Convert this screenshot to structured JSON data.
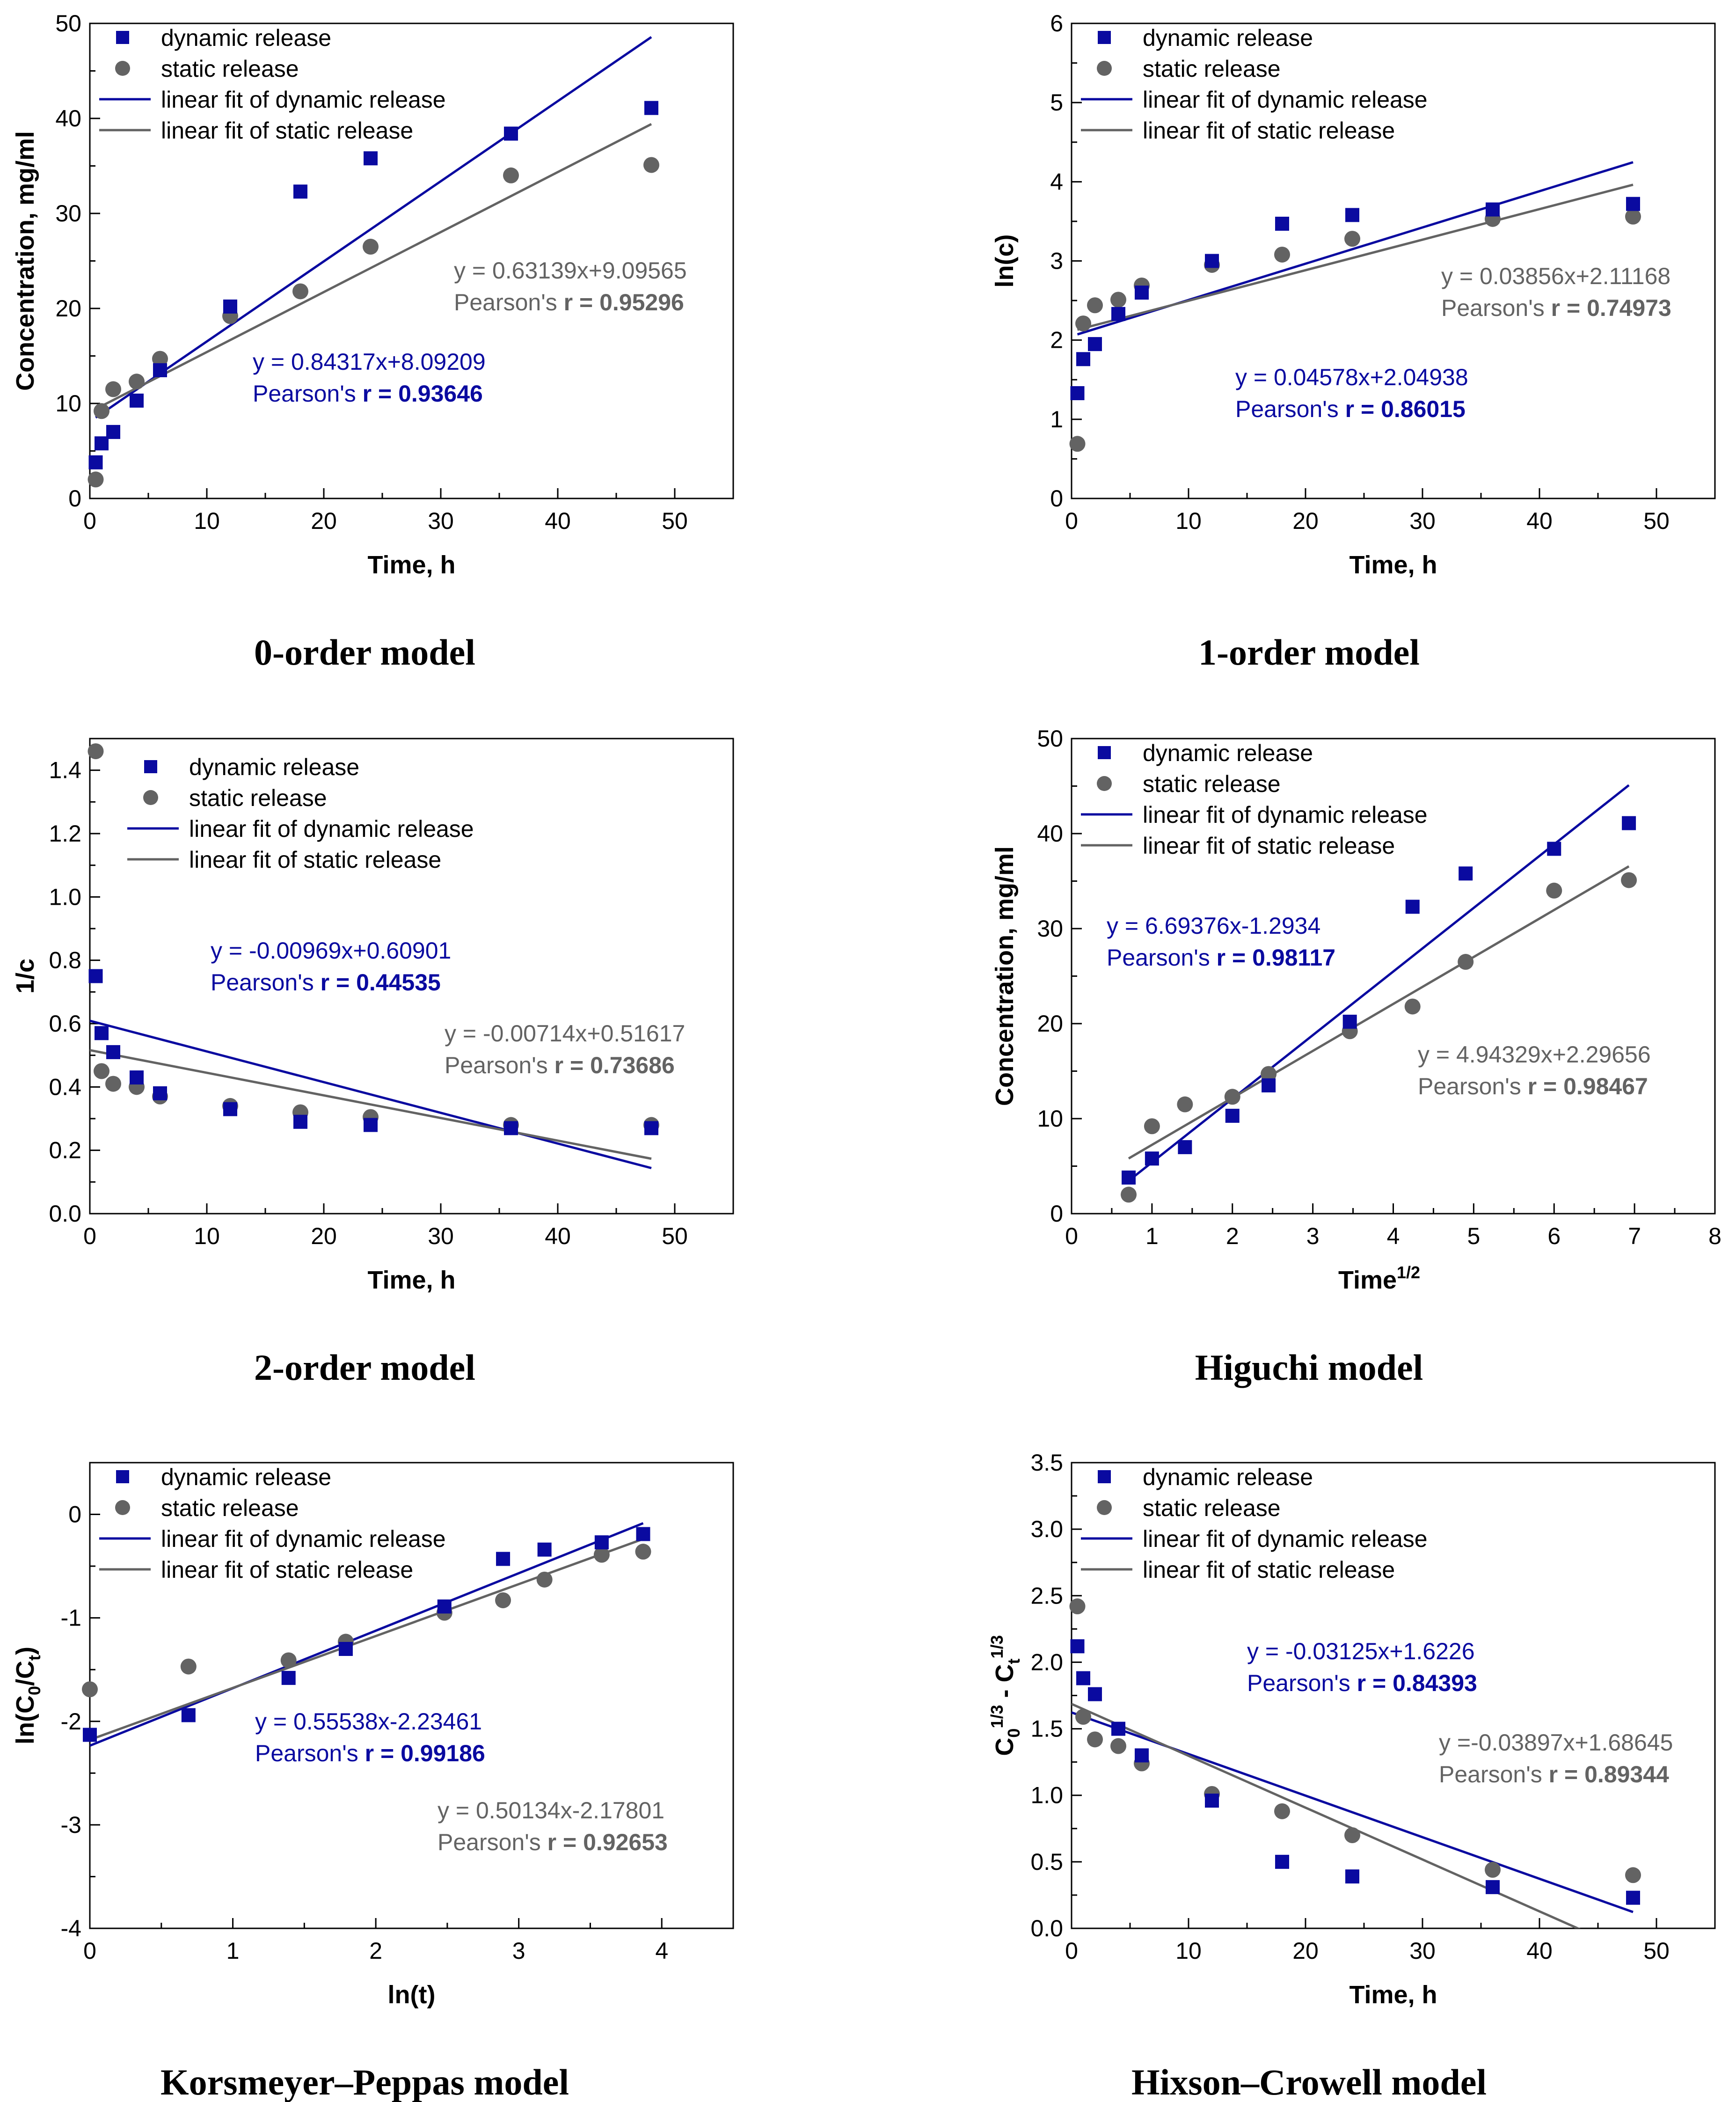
{
  "colors": {
    "dynamic": "#0a0aa0",
    "static": "#636363",
    "axis": "#000000"
  },
  "legend_labels": [
    "dynamic release",
    "static release",
    "linear fit of dynamic release",
    "linear fit of static release"
  ],
  "chart_data": [
    {
      "type": "scatter",
      "caption": "0-order model",
      "xlabel": "Time, h",
      "ylabel": "Concentration, mg/ml",
      "xlim": [
        0,
        55
      ],
      "ylim": [
        0,
        50
      ],
      "xticks": [
        0,
        10,
        20,
        30,
        40,
        50
      ],
      "yticks": [
        0,
        10,
        20,
        30,
        40,
        50
      ],
      "legend": "top-left",
      "series": [
        {
          "name": "dynamic release",
          "marker": "square",
          "x": [
            0.5,
            1,
            2,
            4,
            6,
            12,
            18,
            24,
            36,
            48
          ],
          "y": [
            3.8,
            5.8,
            7.0,
            10.3,
            13.5,
            20.2,
            32.3,
            35.8,
            38.4,
            41.1
          ]
        },
        {
          "name": "static release",
          "marker": "circle",
          "x": [
            0.5,
            1,
            2,
            4,
            6,
            12,
            18,
            24,
            36,
            48
          ],
          "y": [
            2.0,
            9.2,
            11.5,
            12.3,
            14.7,
            19.2,
            21.8,
            26.5,
            34.0,
            35.1
          ]
        }
      ],
      "fits": [
        {
          "name": "linear fit of dynamic release",
          "slope": 0.84317,
          "intercept": 8.09209,
          "xrange": [
            0.5,
            48
          ]
        },
        {
          "name": "linear fit of static release",
          "slope": 0.63139,
          "intercept": 9.09565,
          "xrange": [
            0.5,
            48
          ]
        }
      ],
      "annotations": [
        {
          "equation": "y = 0.84317x+8.09209",
          "pearson_label": "Pearson's ",
          "pearson_value": "r = 0.93646",
          "series": "dynamic"
        },
        {
          "equation": "y = 0.63139x+9.09565",
          "pearson_label": "Pearson's ",
          "pearson_value": "r = 0.95296",
          "series": "static"
        }
      ]
    },
    {
      "type": "scatter",
      "caption": "1-order model",
      "xlabel": "Time, h",
      "ylabel": "ln(c)",
      "xlim": [
        0,
        55
      ],
      "ylim": [
        0,
        6
      ],
      "xticks": [
        0,
        10,
        20,
        30,
        40,
        50
      ],
      "yticks": [
        0,
        1,
        2,
        3,
        4,
        5,
        6
      ],
      "legend": "top-left",
      "series": [
        {
          "name": "dynamic release",
          "marker": "square",
          "x": [
            0.5,
            1,
            2,
            4,
            6,
            12,
            18,
            24,
            36,
            48
          ],
          "y": [
            1.33,
            1.76,
            1.95,
            2.33,
            2.6,
            3.0,
            3.47,
            3.58,
            3.65,
            3.72
          ]
        },
        {
          "name": "static release",
          "marker": "circle",
          "x": [
            0.5,
            1,
            2,
            4,
            6,
            12,
            18,
            24,
            36,
            48
          ],
          "y": [
            0.69,
            2.21,
            2.44,
            2.51,
            2.69,
            2.95,
            3.08,
            3.28,
            3.53,
            3.56
          ]
        }
      ],
      "fits": [
        {
          "name": "linear fit of dynamic release",
          "slope": 0.04578,
          "intercept": 2.04938,
          "xrange": [
            0.5,
            48
          ]
        },
        {
          "name": "linear fit of static release",
          "slope": 0.03856,
          "intercept": 2.11168,
          "xrange": [
            0.5,
            48
          ]
        }
      ],
      "annotations": [
        {
          "equation": "y = 0.04578x+2.04938",
          "pearson_label": "Pearson's ",
          "pearson_value": "r = 0.86015",
          "series": "dynamic"
        },
        {
          "equation": "y = 0.03856x+2.11168",
          "pearson_label": "Pearson's ",
          "pearson_value": "r = 0.74973",
          "series": "static"
        }
      ]
    },
    {
      "type": "scatter",
      "caption": "2-order model",
      "xlabel": "Time, h",
      "ylabel": "1/c",
      "xlim": [
        0,
        55
      ],
      "ylim": [
        0,
        1.5
      ],
      "xticks": [
        0,
        10,
        20,
        30,
        40,
        50
      ],
      "yticks": [
        0.0,
        0.2,
        0.4,
        0.6,
        0.8,
        1.0,
        1.2,
        1.4
      ],
      "ytick_labels": [
        "0.0",
        "0.2",
        "0.4",
        "0.6",
        "0.8",
        "1.0",
        "1.2",
        "1.4"
      ],
      "legend": "top-left",
      "series": [
        {
          "name": "dynamic release",
          "marker": "square",
          "x": [
            0.5,
            1,
            2,
            4,
            6,
            12,
            18,
            24,
            36,
            48
          ],
          "y": [
            0.75,
            0.57,
            0.51,
            0.43,
            0.38,
            0.33,
            0.29,
            0.28,
            0.27,
            0.27
          ]
        },
        {
          "name": "static release",
          "marker": "circle",
          "x": [
            0.5,
            1,
            2,
            4,
            6,
            12,
            18,
            24,
            36,
            48
          ],
          "y": [
            1.46,
            0.45,
            0.41,
            0.4,
            0.37,
            0.34,
            0.32,
            0.305,
            0.28,
            0.28
          ]
        }
      ],
      "fits": [
        {
          "name": "linear fit of dynamic release",
          "slope": -0.00969,
          "intercept": 0.60901,
          "xrange": [
            0,
            48
          ]
        },
        {
          "name": "linear fit of static release",
          "slope": -0.00714,
          "intercept": 0.51617,
          "xrange": [
            0,
            48
          ]
        }
      ],
      "annotations": [
        {
          "equation": "y = -0.00969x+0.60901",
          "pearson_label": "Pearson's ",
          "pearson_value": "r = 0.44535",
          "series": "dynamic"
        },
        {
          "equation": "y = -0.00714x+0.51617",
          "pearson_label": "Pearson's ",
          "pearson_value": "r = 0.73686",
          "series": "static"
        }
      ]
    },
    {
      "type": "scatter",
      "caption": "Higuchi model",
      "xlabel": "Time",
      "xlabel_sup": "1/2",
      "ylabel": "Concentration, mg/ml",
      "xlim": [
        0,
        8
      ],
      "ylim": [
        0,
        50
      ],
      "xticks": [
        0,
        1,
        2,
        3,
        4,
        5,
        6,
        7,
        8
      ],
      "yticks": [
        0,
        10,
        20,
        30,
        40,
        50
      ],
      "legend": "top-left",
      "series": [
        {
          "name": "dynamic release",
          "marker": "square",
          "x": [
            0.71,
            1.0,
            1.41,
            2.0,
            2.45,
            3.46,
            4.24,
            4.9,
            6.0,
            6.93
          ],
          "y": [
            3.8,
            5.8,
            7.0,
            10.3,
            13.5,
            20.2,
            32.3,
            35.8,
            38.4,
            41.1
          ]
        },
        {
          "name": "static release",
          "marker": "circle",
          "x": [
            0.71,
            1.0,
            1.41,
            2.0,
            2.45,
            3.46,
            4.24,
            4.9,
            6.0,
            6.93
          ],
          "y": [
            2.0,
            9.2,
            11.5,
            12.3,
            14.7,
            19.2,
            21.8,
            26.5,
            34.0,
            35.1
          ]
        }
      ],
      "fits": [
        {
          "name": "linear fit of dynamic release",
          "slope": 6.69376,
          "intercept": -1.2934,
          "xrange": [
            0.71,
            6.93
          ]
        },
        {
          "name": "linear fit of static release",
          "slope": 4.94329,
          "intercept": 2.29656,
          "xrange": [
            0.71,
            6.93
          ]
        }
      ],
      "annotations": [
        {
          "equation": "y = 6.69376x-1.2934",
          "pearson_label": "Pearson's ",
          "pearson_value": "r = 0.98117",
          "series": "dynamic"
        },
        {
          "equation": "y = 4.94329x+2.29656",
          "pearson_label": "Pearson's ",
          "pearson_value": "r = 0.98467",
          "series": "static"
        }
      ]
    },
    {
      "type": "scatter",
      "caption": "Korsmeyer–Peppas model",
      "xlabel": "ln(t)",
      "ylabel": "ln(C0/Ct)",
      "ylabel_parts": [
        "ln(C",
        "0",
        "/C",
        "t",
        ")"
      ],
      "xlim": [
        0,
        4.5
      ],
      "ylim": [
        -4,
        0.5
      ],
      "xticks": [
        0,
        1,
        2,
        3,
        4
      ],
      "yticks": [
        -4,
        -3,
        -2,
        -1,
        0
      ],
      "legend": "top-left",
      "series": [
        {
          "name": "dynamic release",
          "marker": "square",
          "x": [
            0,
            0.69,
            1.39,
            1.79,
            2.48,
            2.89,
            3.18,
            3.58,
            3.87
          ],
          "y": [
            -2.13,
            -1.94,
            -1.58,
            -1.3,
            -0.89,
            -0.43,
            -0.34,
            -0.27,
            -0.19
          ]
        },
        {
          "name": "static release",
          "marker": "circle",
          "x": [
            0,
            0.69,
            1.39,
            1.79,
            2.48,
            2.89,
            3.18,
            3.58,
            3.87
          ],
          "y": [
            -1.69,
            -1.47,
            -1.41,
            -1.23,
            -0.95,
            -0.83,
            -0.63,
            -0.39,
            -0.36
          ]
        }
      ],
      "fits": [
        {
          "name": "linear fit of dynamic release",
          "slope": 0.55538,
          "intercept": -2.23461,
          "xrange": [
            0,
            3.87
          ]
        },
        {
          "name": "linear fit of static release",
          "slope": 0.50134,
          "intercept": -2.17801,
          "xrange": [
            0,
            3.87
          ]
        }
      ],
      "annotations": [
        {
          "equation": "y = 0.55538x-2.23461",
          "pearson_label": "Pearson's ",
          "pearson_value": "r = 0.99186",
          "series": "dynamic"
        },
        {
          "equation": "y = 0.50134x-2.17801",
          "pearson_label": "Pearson's ",
          "pearson_value": "r = 0.92653",
          "series": "static"
        }
      ]
    },
    {
      "type": "scatter",
      "caption": "Hixson–Crowell model",
      "xlabel": "Time, h",
      "ylabel": "C0^1/3 - Ct^1/3",
      "ylabel_parts": [
        "C",
        "0",
        "1/3",
        " - C",
        "t",
        "1/3"
      ],
      "xlim": [
        0,
        55
      ],
      "ylim": [
        0,
        3.5
      ],
      "xticks": [
        0,
        10,
        20,
        30,
        40,
        50
      ],
      "yticks": [
        0.0,
        0.5,
        1.0,
        1.5,
        2.0,
        2.5,
        3.0,
        3.5
      ],
      "ytick_labels": [
        "0.0",
        "0.5",
        "1.0",
        "1.5",
        "2.0",
        "2.5",
        "3.0",
        "3.5"
      ],
      "legend": "top-left",
      "series": [
        {
          "name": "dynamic release",
          "marker": "square",
          "x": [
            0.5,
            1,
            2,
            4,
            6,
            12,
            18,
            24,
            36,
            48
          ],
          "y": [
            2.12,
            1.88,
            1.76,
            1.5,
            1.3,
            0.96,
            0.5,
            0.39,
            0.31,
            0.23
          ]
        },
        {
          "name": "static release",
          "marker": "circle",
          "x": [
            0.5,
            1,
            2,
            4,
            6,
            12,
            18,
            24,
            36,
            48
          ],
          "y": [
            2.42,
            1.59,
            1.42,
            1.37,
            1.24,
            1.01,
            0.88,
            0.7,
            0.44,
            0.4
          ]
        }
      ],
      "fits": [
        {
          "name": "linear fit of dynamic release",
          "slope": -0.03125,
          "intercept": 1.6226,
          "xrange": [
            0,
            48
          ]
        },
        {
          "name": "linear fit of static release",
          "slope": -0.03897,
          "intercept": 1.68645,
          "xrange": [
            0,
            48
          ]
        }
      ],
      "annotations": [
        {
          "equation": "y = -0.03125x+1.6226",
          "pearson_label": "Pearson's ",
          "pearson_value": "r = 0.84393",
          "series": "dynamic"
        },
        {
          "equation": "y =-0.03897x+1.68645",
          "pearson_label": "Pearson's ",
          "pearson_value": "r = 0.89344",
          "series": "static"
        }
      ]
    }
  ]
}
